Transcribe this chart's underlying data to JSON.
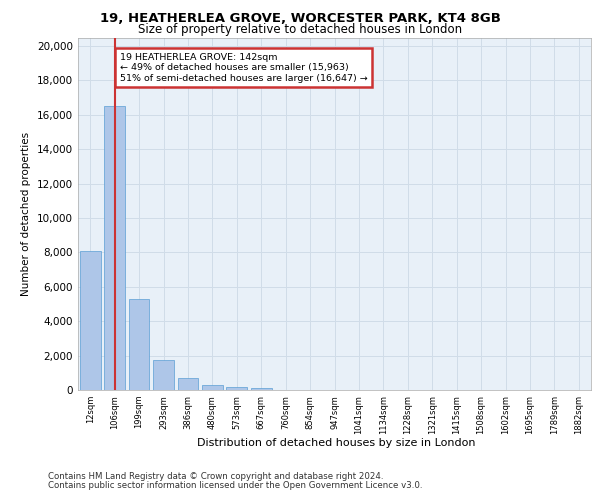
{
  "title_line1": "19, HEATHERLEA GROVE, WORCESTER PARK, KT4 8GB",
  "title_line2": "Size of property relative to detached houses in London",
  "xlabel": "Distribution of detached houses by size in London",
  "ylabel": "Number of detached properties",
  "bar_categories": [
    "12sqm",
    "106sqm",
    "199sqm",
    "293sqm",
    "386sqm",
    "480sqm",
    "573sqm",
    "667sqm",
    "760sqm",
    "854sqm",
    "947sqm",
    "1041sqm",
    "1134sqm",
    "1228sqm",
    "1321sqm",
    "1415sqm",
    "1508sqm",
    "1602sqm",
    "1695sqm",
    "1789sqm",
    "1882sqm"
  ],
  "bar_values": [
    8100,
    16500,
    5300,
    1750,
    700,
    300,
    150,
    100,
    0,
    0,
    0,
    0,
    0,
    0,
    0,
    0,
    0,
    0,
    0,
    0,
    0
  ],
  "bar_color": "#aec6e8",
  "bar_edge_color": "#5a9fd4",
  "highlight_bar_index": 1,
  "highlight_color": "#cc3333",
  "annotation_line1": "19 HEATHERLEA GROVE: 142sqm",
  "annotation_line2": "← 49% of detached houses are smaller (15,963)",
  "annotation_line3": "51% of semi-detached houses are larger (16,647) →",
  "annotation_box_color": "#cc3333",
  "ylim": [
    0,
    20500
  ],
  "yticks": [
    0,
    2000,
    4000,
    6000,
    8000,
    10000,
    12000,
    14000,
    16000,
    18000,
    20000
  ],
  "grid_color": "#d0dce8",
  "bg_color": "#e8f0f8",
  "footer_line1": "Contains HM Land Registry data © Crown copyright and database right 2024.",
  "footer_line2": "Contains public sector information licensed under the Open Government Licence v3.0."
}
